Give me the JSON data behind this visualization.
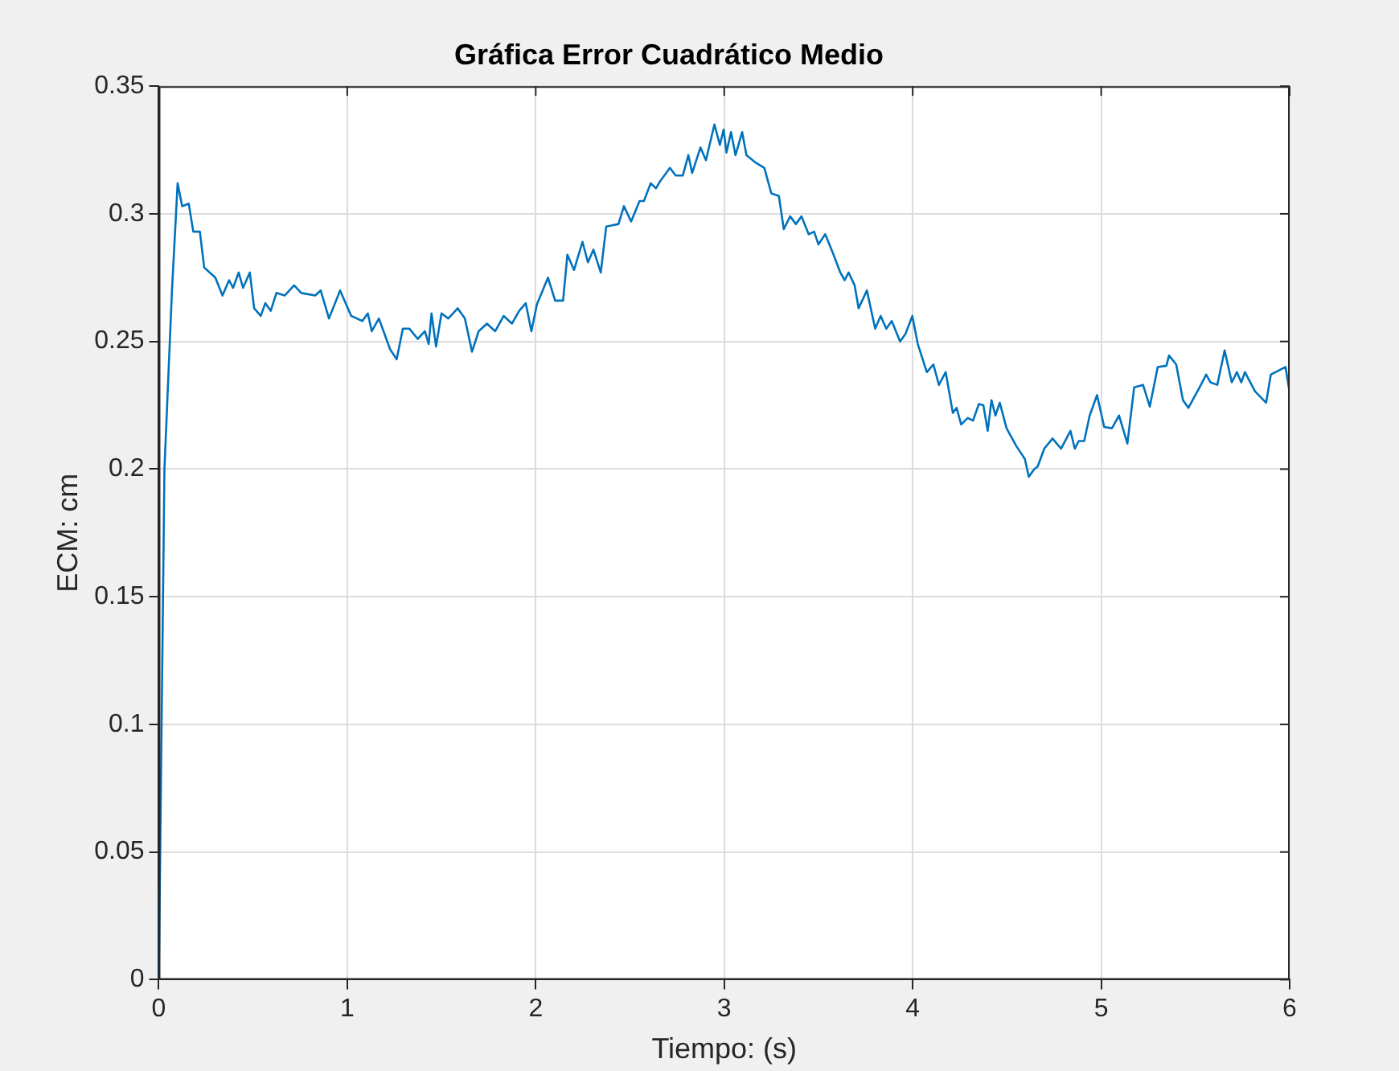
{
  "chart_data": {
    "type": "line",
    "title": "Gráfica Error Cuadrático Medio",
    "xlabel": "Tiempo: (s)",
    "ylabel": "ECM: cm",
    "xlim": [
      0,
      6
    ],
    "xticks": [
      0,
      1,
      2,
      3,
      4,
      5,
      6
    ],
    "ylim": [
      0,
      0.35
    ],
    "yticks": [
      0,
      0.05,
      0.1,
      0.15,
      0.2,
      0.25,
      0.3,
      0.35
    ],
    "grid": true,
    "legend": false,
    "marker": "none",
    "line_style": "solid",
    "series": [
      {
        "color": "#0072bd",
        "x": [
          0,
          0.03,
          0.07,
          0.1,
          0.124,
          0.159,
          0.183,
          0.218,
          0.241,
          0.3,
          0.338,
          0.373,
          0.394,
          0.424,
          0.447,
          0.483,
          0.506,
          0.541,
          0.565,
          0.594,
          0.624,
          0.668,
          0.718,
          0.756,
          0.83,
          0.859,
          0.903,
          0.962,
          1.021,
          1.08,
          1.109,
          1.13,
          1.168,
          1.227,
          1.262,
          1.295,
          1.33,
          1.374,
          1.412,
          1.432,
          1.447,
          1.471,
          1.5,
          1.536,
          1.586,
          1.624,
          1.662,
          1.697,
          1.741,
          1.785,
          1.83,
          1.874,
          1.912,
          1.947,
          1.977,
          2.006,
          2.065,
          2.103,
          2.145,
          2.168,
          2.203,
          2.248,
          2.277,
          2.306,
          2.345,
          2.374,
          2.439,
          2.468,
          2.506,
          2.551,
          2.574,
          2.61,
          2.638,
          2.662,
          2.712,
          2.742,
          2.78,
          2.81,
          2.83,
          2.874,
          2.903,
          2.948,
          2.977,
          2.997,
          3.012,
          3.036,
          3.06,
          3.095,
          3.118,
          3.168,
          3.213,
          3.25,
          3.29,
          3.316,
          3.35,
          3.38,
          3.41,
          3.448,
          3.477,
          3.5,
          3.536,
          3.58,
          3.616,
          3.639,
          3.66,
          3.692,
          3.713,
          3.757,
          3.801,
          3.83,
          3.86,
          3.889,
          3.933,
          3.962,
          3.998,
          4.027,
          4.075,
          4.11,
          4.139,
          4.175,
          4.213,
          4.233,
          4.257,
          4.292,
          4.32,
          4.351,
          4.375,
          4.398,
          4.418,
          4.439,
          4.462,
          4.498,
          4.55,
          4.595,
          4.616,
          4.645,
          4.663,
          4.698,
          4.742,
          4.787,
          4.837,
          4.86,
          4.881,
          4.91,
          4.939,
          4.978,
          5.016,
          5.057,
          5.095,
          5.139,
          5.175,
          5.222,
          5.258,
          5.3,
          5.346,
          5.36,
          5.398,
          5.434,
          5.463,
          5.522,
          5.557,
          5.58,
          5.616,
          5.655,
          5.693,
          5.72,
          5.743,
          5.763,
          5.816,
          5.875,
          5.9,
          5.978,
          6
        ],
        "values": [
          0,
          0.2,
          0.27,
          0.312,
          0.303,
          0.304,
          0.293,
          0.293,
          0.279,
          0.275,
          0.268,
          0.274,
          0.271,
          0.277,
          0.271,
          0.277,
          0.263,
          0.26,
          0.265,
          0.262,
          0.269,
          0.268,
          0.272,
          0.269,
          0.268,
          0.27,
          0.259,
          0.27,
          0.26,
          0.258,
          0.261,
          0.254,
          0.259,
          0.247,
          0.243,
          0.255,
          0.255,
          0.251,
          0.254,
          0.249,
          0.261,
          0.248,
          0.261,
          0.259,
          0.263,
          0.259,
          0.246,
          0.254,
          0.257,
          0.254,
          0.26,
          0.257,
          0.262,
          0.265,
          0.254,
          0.2645,
          0.275,
          0.266,
          0.266,
          0.284,
          0.278,
          0.289,
          0.281,
          0.286,
          0.277,
          0.295,
          0.296,
          0.303,
          0.297,
          0.305,
          0.305,
          0.312,
          0.31,
          0.313,
          0.318,
          0.315,
          0.315,
          0.323,
          0.316,
          0.326,
          0.321,
          0.335,
          0.327,
          0.333,
          0.324,
          0.332,
          0.323,
          0.332,
          0.323,
          0.32,
          0.318,
          0.308,
          0.307,
          0.294,
          0.299,
          0.296,
          0.299,
          0.292,
          0.293,
          0.288,
          0.292,
          0.284,
          0.277,
          0.274,
          0.277,
          0.272,
          0.263,
          0.27,
          0.255,
          0.26,
          0.255,
          0.258,
          0.25,
          0.253,
          0.26,
          0.249,
          0.238,
          0.241,
          0.233,
          0.238,
          0.222,
          0.224,
          0.2175,
          0.22,
          0.219,
          0.2255,
          0.225,
          0.215,
          0.227,
          0.221,
          0.226,
          0.216,
          0.209,
          0.204,
          0.197,
          0.2,
          0.201,
          0.208,
          0.212,
          0.208,
          0.215,
          0.208,
          0.211,
          0.211,
          0.221,
          0.229,
          0.2165,
          0.216,
          0.221,
          0.21,
          0.232,
          0.233,
          0.2245,
          0.24,
          0.2405,
          0.2445,
          0.241,
          0.227,
          0.224,
          0.232,
          0.237,
          0.234,
          0.233,
          0.2465,
          0.234,
          0.238,
          0.234,
          0.238,
          0.2305,
          0.226,
          0.237,
          0.24,
          0.23
        ]
      }
    ]
  }
}
